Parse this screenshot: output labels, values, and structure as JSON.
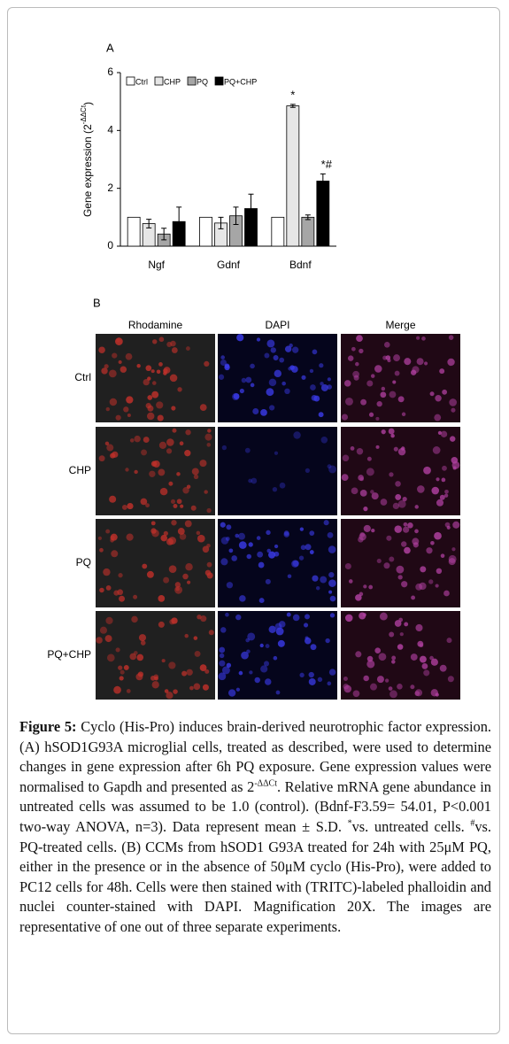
{
  "chart_data": {
    "type": "bar",
    "panel_label": "A",
    "y_label": [
      "Gene expression (2",
      "-ΔΔCt",
      ")"
    ],
    "categories": [
      "Ngf",
      "Gdnf",
      "Bdnf"
    ],
    "series": [
      {
        "name": "Ctrl",
        "color": "#ffffff",
        "values": [
          1.0,
          1.0,
          1.0
        ],
        "errors": [
          0,
          0,
          0
        ]
      },
      {
        "name": "CHP",
        "color": "#e6e6e6",
        "values": [
          0.78,
          0.8,
          4.85
        ],
        "errors": [
          0.15,
          0.2,
          0.05
        ],
        "annotations": [
          null,
          null,
          "*"
        ]
      },
      {
        "name": "PQ",
        "color": "#a6a6a6",
        "values": [
          0.42,
          1.05,
          1.0
        ],
        "errors": [
          0.2,
          0.3,
          0.08
        ]
      },
      {
        "name": "PQ+CHP",
        "color": "#000000",
        "values": [
          0.85,
          1.3,
          2.25
        ],
        "errors": [
          0.5,
          0.5,
          0.25
        ],
        "annotations": [
          null,
          null,
          "*#"
        ]
      }
    ],
    "ylim": [
      0,
      6
    ],
    "yticks": [
      0,
      2,
      4,
      6
    ],
    "grid": false
  },
  "panel_b": {
    "label": "B",
    "columns": [
      "Rhodamine",
      "DAPI",
      "Merge"
    ],
    "rows": [
      "Ctrl",
      "CHP",
      "PQ",
      "PQ+CHP"
    ]
  },
  "caption": {
    "label": "Figure 5:",
    "parts": [
      "Cyclo (His-Pro) induces brain-derived neurotrophic factor expression. (A) hSOD1G93A microglial cells, treated as described, were used to determine changes in gene expression after 6h PQ exposure. Gene expression values were normalised to Gapdh and presented as 2",
      "-ΔΔCt",
      ". Relative mRNA gene abundance in untreated cells was assumed to be 1.0 (control). (Bdnf-F3.59= 54.01, P<0.001 two-way ANOVA, n=3). Data represent mean ± S.D. ",
      "*",
      "vs. untreated cells. ",
      "#",
      "vs. PQ-treated cells. (B) CCMs from hSOD1 G93A treated for 24h with 25μM PQ, either in the presence or in the absence of 50μM cyclo (His-Pro), were added to PC12 cells for 48h. Cells were then stained with (TRITC)-labeled phalloidin and nuclei counter-stained with DAPI. Magnification 20X. The images are representative of one out of three separate experiments."
    ]
  }
}
